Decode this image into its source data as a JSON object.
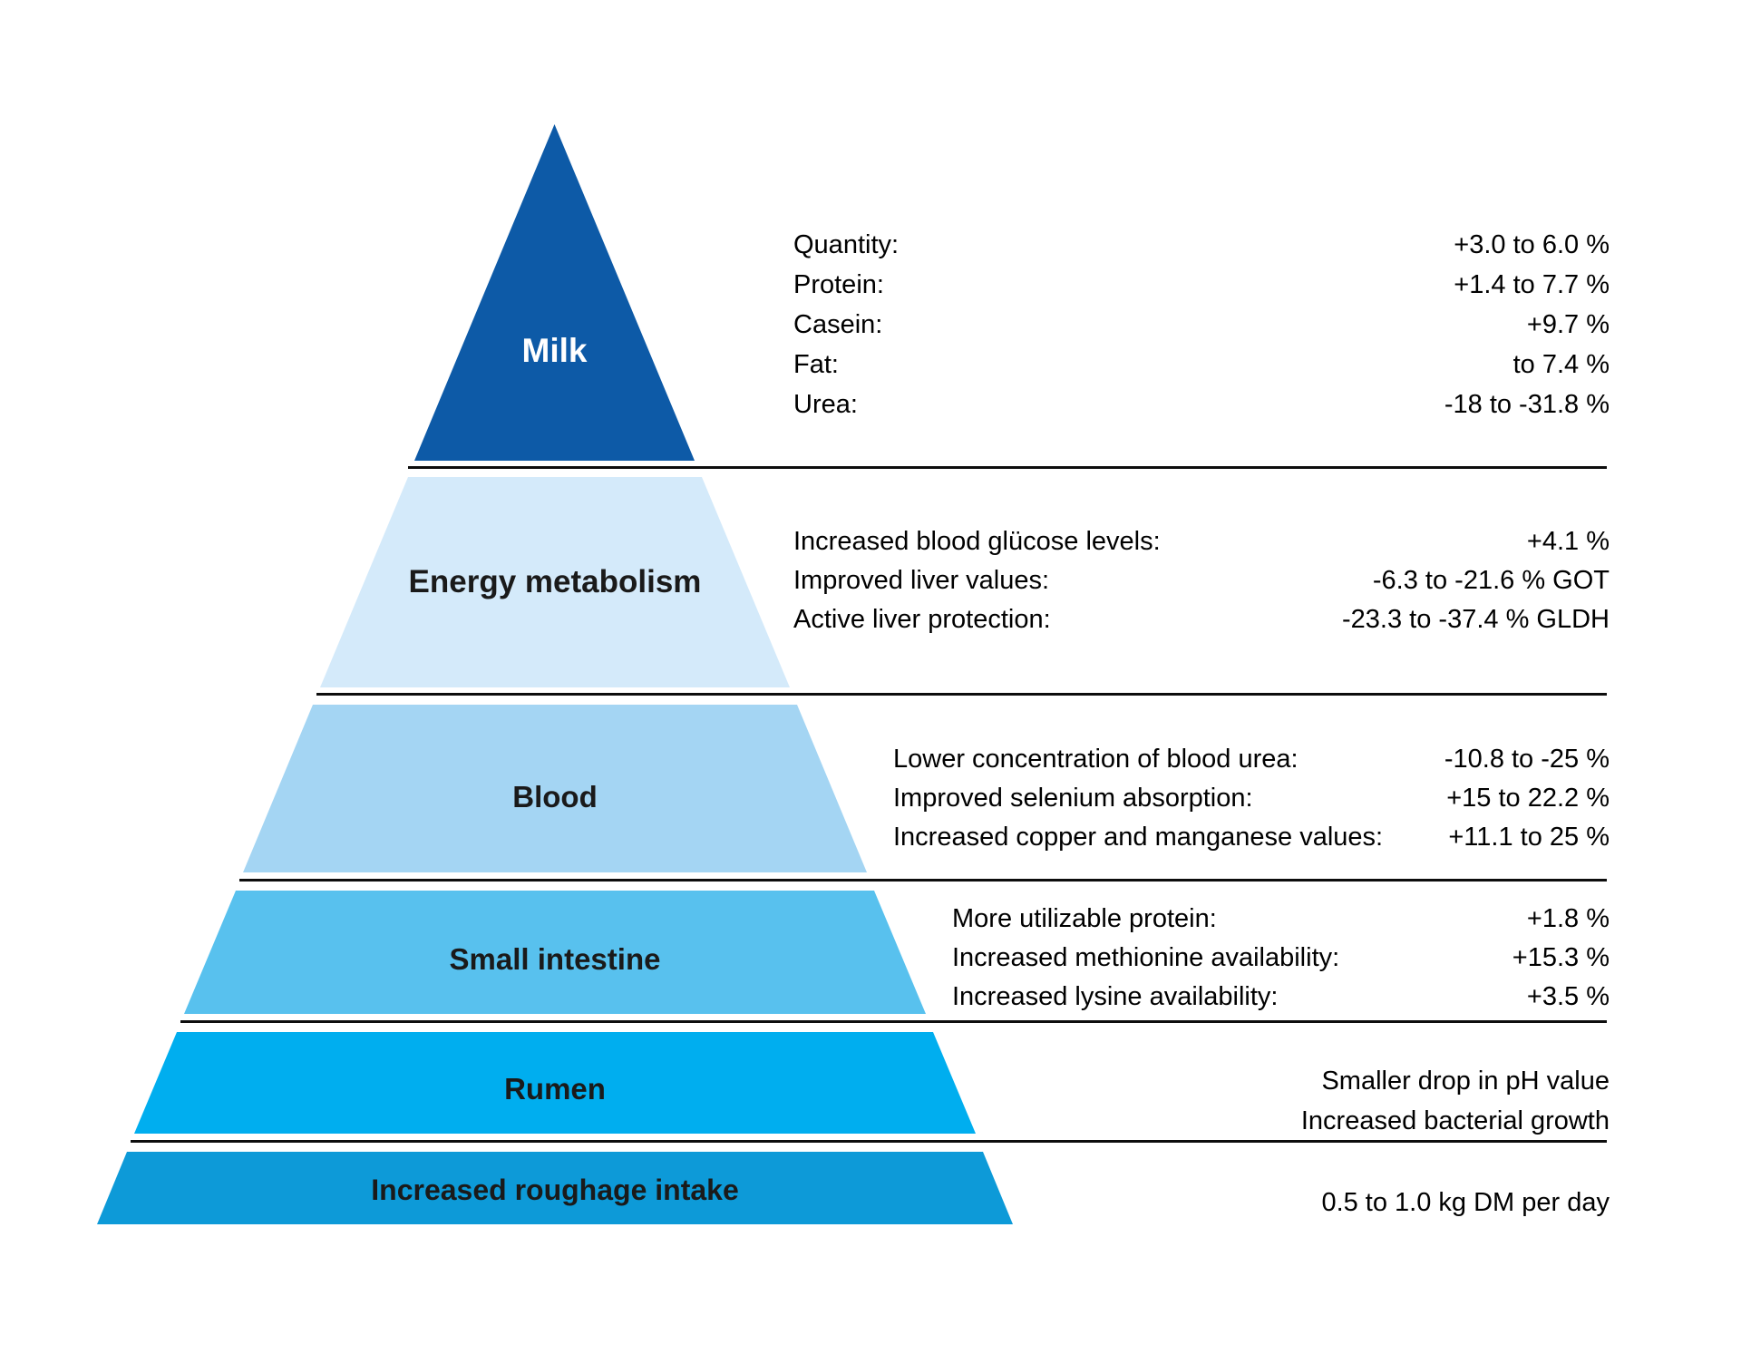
{
  "diagram": {
    "type": "pyramid",
    "background_color": "#ffffff",
    "separator_color": "#0d0d0d",
    "levels": [
      {
        "id": "milk",
        "label": "Milk",
        "color": "#0d5aa7",
        "text_color": "#ffffff",
        "items": [
          {
            "label": "Quantity:",
            "value": "+3.0 to 6.0 %"
          },
          {
            "label": "Protein:",
            "value": "+1.4 to 7.7 %"
          },
          {
            "label": "Casein:",
            "value": "+9.7 %"
          },
          {
            "label": "Fat:",
            "value": "to 7.4 %"
          },
          {
            "label": "Urea:",
            "value": "-18 to -31.8 %"
          }
        ]
      },
      {
        "id": "energy-metabolism",
        "label": "Energy metabolism",
        "color": "#d4eafa",
        "text_color": "#1a1a1a",
        "items": [
          {
            "label": "Increased blood glücose levels:",
            "value": "+4.1 %"
          },
          {
            "label": "Improved liver values:",
            "value": "-6.3 to -21.6 % GOT"
          },
          {
            "label": "Active liver protection:",
            "value": "-23.3 to -37.4 % GLDH"
          }
        ]
      },
      {
        "id": "blood",
        "label": "Blood",
        "color": "#a4d5f3",
        "text_color": "#1a1a1a",
        "items": [
          {
            "label": "Lower concentration of blood urea:",
            "value": "-10.8 to -25 %"
          },
          {
            "label": "Improved selenium absorption:",
            "value": "+15 to 22.2 %"
          },
          {
            "label": "Increased copper and manganese values:",
            "value": "+11.1 to 25 %"
          }
        ]
      },
      {
        "id": "small-intestine",
        "label": "Small intestine",
        "color": "#58c1ee",
        "text_color": "#1a1a1a",
        "items": [
          {
            "label": "More utilizable protein:",
            "value": "+1.8 %"
          },
          {
            "label": "Increased methionine availability:",
            "value": "+15.3 %"
          },
          {
            "label": "Increased lysine availability:",
            "value": "+3.5 %"
          }
        ]
      },
      {
        "id": "rumen",
        "label": "Rumen",
        "color": "#00aeef",
        "text_color": "#1a1a1a",
        "items": [
          {
            "label": "",
            "value": "Smaller drop in pH value"
          },
          {
            "label": "",
            "value": "Increased bacterial growth"
          }
        ]
      },
      {
        "id": "increased-roughage-intake",
        "label": "Increased roughage intake",
        "color": "#0d9ad8",
        "text_color": "#1a1a1a",
        "items": [
          {
            "label": "",
            "value": "0.5 to 1.0 kg DM per day"
          }
        ]
      }
    ]
  }
}
